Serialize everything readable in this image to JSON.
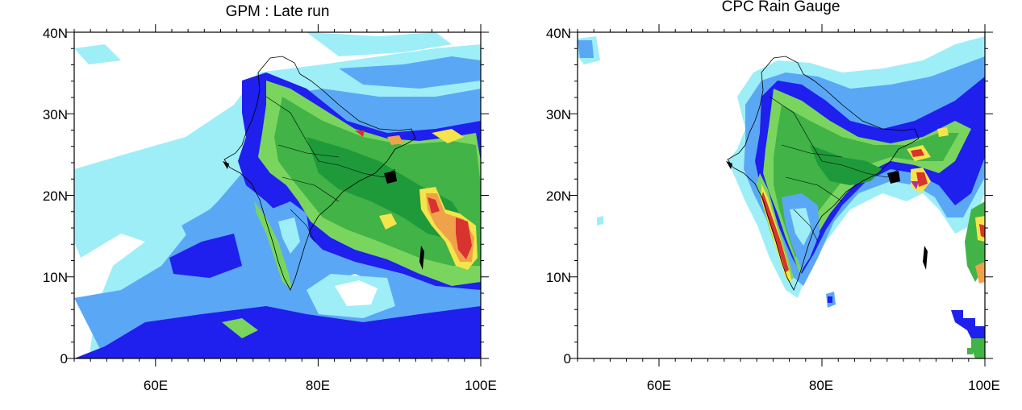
{
  "panels": [
    {
      "id": "gpm",
      "title": "GPM : Late run",
      "y_tick_labels": [
        "40N",
        "30N",
        "20N",
        "10N",
        "0"
      ],
      "x_tick_labels": [
        "60E",
        "80E",
        "100E"
      ]
    },
    {
      "id": "cpc",
      "title": "CPC Rain Gauge",
      "y_tick_labels": [
        "40N",
        "30N",
        "20N",
        "10N",
        "0"
      ],
      "x_tick_labels": [
        "60E",
        "80E",
        "100E"
      ]
    }
  ],
  "map_extent": {
    "lon_min": 50,
    "lon_max": 100,
    "lat_min": 0,
    "lat_max": 40
  },
  "colors": {
    "light_cyan": "#9eeef8",
    "light_blue": "#5aa8f5",
    "blue": "#1f1fee",
    "green_light": "#7ad55e",
    "green": "#41b347",
    "green_dark": "#1f9a3a",
    "yellow": "#f5e44a",
    "orange": "#f0a24a",
    "red": "#d8332e",
    "magenta": "#b22bb0",
    "outline": "#000000"
  }
}
